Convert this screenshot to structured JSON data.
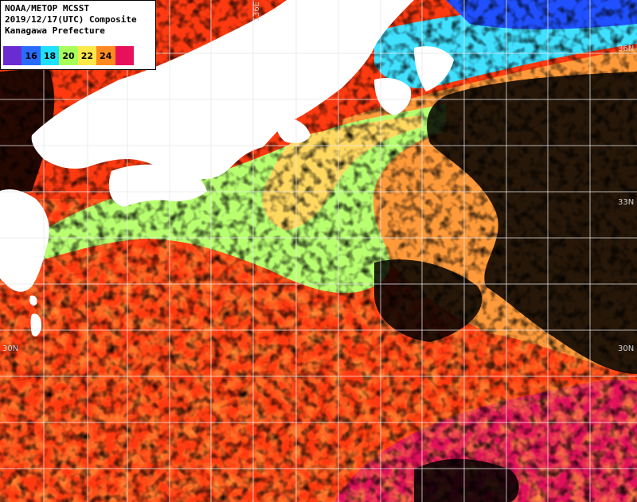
{
  "info": {
    "line1": "NOAA/METOP MCSST",
    "line2": "2019/12/17(UTC) Composite",
    "line3": "Kanagawa Prefecture"
  },
  "legend": {
    "labels": [
      "",
      "16",
      "18",
      "20",
      "22",
      "24",
      ""
    ],
    "colors": [
      "#6a2bd0",
      "#2a6bff",
      "#1fe0ff",
      "#a8ff5a",
      "#ffe84a",
      "#ff8a1f",
      "#e8105a"
    ]
  },
  "grid_labels": {
    "lon_136": "136E",
    "lat_36": "36N",
    "lat_33": "33N",
    "lat_30_left": "30N",
    "lat_30_right": "30N"
  },
  "palette": {
    "land": "#ffffff",
    "cloud": "#000000",
    "sst_warm": "#ff5a1a",
    "sst_warmer": "#ff3a10",
    "sst_orange": "#ff9a3a",
    "sst_yellow": "#ffd860",
    "sst_green": "#b8ff70",
    "sst_cyan": "#40e0ff",
    "sst_blue": "#2050ff",
    "sst_magenta": "#e0105a",
    "grid": "#e8e8e8"
  }
}
